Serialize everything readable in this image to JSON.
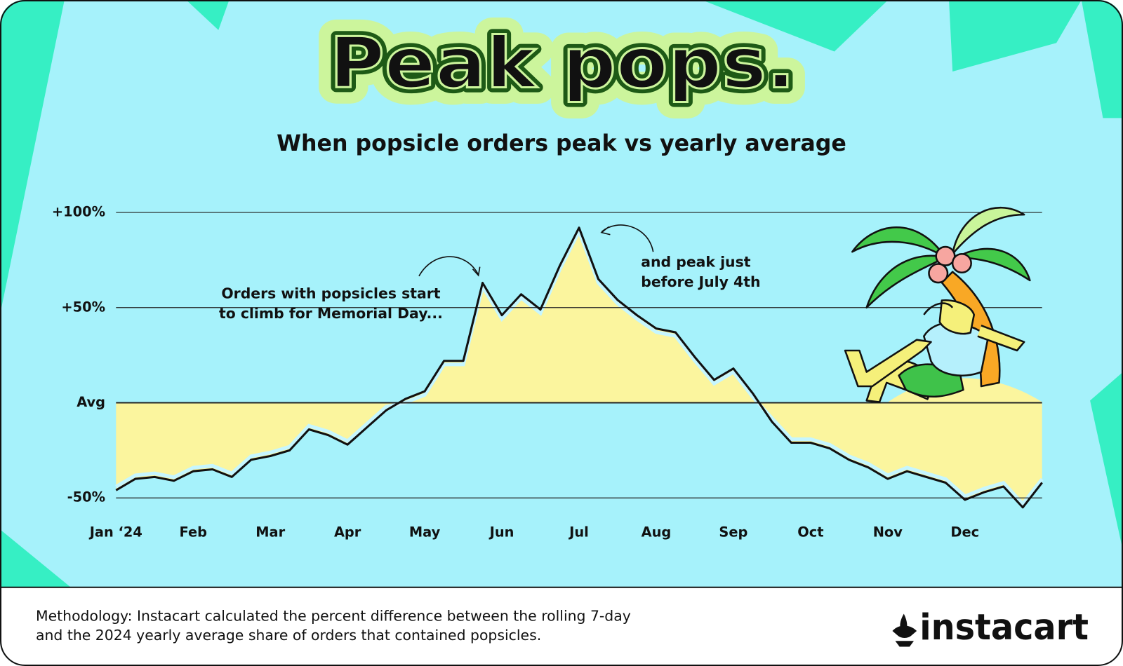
{
  "chart_data": {
    "type": "area",
    "title": "Peak pops.",
    "subtitle": "When popsicle orders peak vs yearly average",
    "categories": [
      "Jan ‘24",
      null,
      null,
      null,
      "Feb",
      null,
      null,
      null,
      "Mar",
      null,
      null,
      null,
      "Apr",
      null,
      null,
      null,
      "May",
      null,
      null,
      null,
      "Jun",
      null,
      null,
      null,
      "Jul",
      null,
      null,
      null,
      "Aug",
      null,
      null,
      null,
      "Sep",
      null,
      null,
      null,
      "Oct",
      null,
      null,
      null,
      "Nov",
      null,
      null,
      null,
      "Dec",
      null,
      null,
      null,
      null
    ],
    "values": [
      -46,
      -40,
      -39,
      -41,
      -36,
      -35,
      -39,
      -30,
      -28,
      -25,
      -14,
      -17,
      -22,
      -13,
      -4,
      2,
      6,
      22,
      22,
      63,
      46,
      57,
      49,
      72,
      92,
      65,
      54,
      46,
      39,
      37,
      24,
      12,
      18,
      5,
      -10,
      -21,
      -21,
      -24,
      -30,
      -34,
      -40,
      -36,
      -39,
      -42,
      -51,
      -47,
      -44,
      -55,
      -42
    ],
    "color": "#111111",
    "fill_color": "#fbf59e",
    "ylim": [
      -60,
      100
    ],
    "yticks": [
      {
        "value": 100,
        "label": "+100%"
      },
      {
        "value": 50,
        "label": "+50%"
      },
      {
        "value": 0,
        "label": "Avg"
      },
      {
        "value": -50,
        "label": "-50%"
      }
    ],
    "grid": true,
    "annotations": [
      {
        "lines": [
          "Orders with popsicles start",
          "to climb for Memorial Day..."
        ]
      },
      {
        "lines": [
          "and peak just",
          "before July 4th"
        ]
      }
    ]
  },
  "footer": {
    "methodology": [
      "Methodology: Instacart calculated the percent difference between the rolling 7-day",
      "and the 2024 yearly average share of orders that contained popsicles."
    ],
    "brand": "instacart"
  }
}
